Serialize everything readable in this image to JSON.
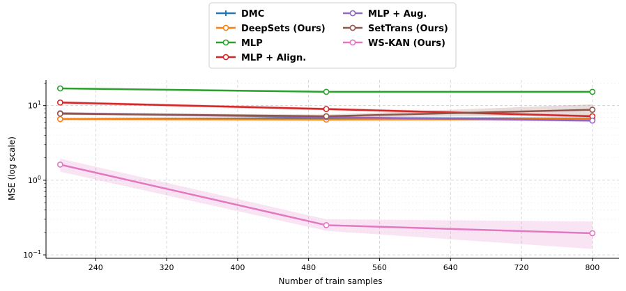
{
  "chart_data": {
    "type": "line",
    "xlabel": "Number of train samples",
    "ylabel": "MSE (log scale)",
    "yscale": "log",
    "xlim": [
      184,
      830
    ],
    "ylim": [
      0.09,
      22
    ],
    "x_ticks": [
      240,
      320,
      400,
      480,
      560,
      640,
      720,
      800
    ],
    "y_ticks": [
      {
        "value": 0.1,
        "base": "10",
        "exp": "−1"
      },
      {
        "value": 1,
        "base": "10",
        "exp": "0"
      },
      {
        "value": 10,
        "base": "10",
        "exp": "1"
      }
    ],
    "grid": true,
    "legend_position": "top-center",
    "x": [
      200,
      500,
      800
    ],
    "series": [
      {
        "name": "DMC",
        "color": "#1f77b4",
        "marker": "plus",
        "values": [
          6.6,
          6.8,
          6.7
        ],
        "band": [
          [
            6.5,
            6.7
          ],
          [
            6.6,
            7.0
          ],
          [
            6.4,
            7.0
          ]
        ]
      },
      {
        "name": "DeepSets (Ours)",
        "color": "#ff7f0e",
        "marker": "circle",
        "values": [
          6.6,
          6.5,
          6.6
        ],
        "band": [
          [
            6.4,
            6.8
          ],
          [
            6.3,
            6.7
          ],
          [
            6.4,
            6.8
          ]
        ]
      },
      {
        "name": "MLP",
        "color": "#2ca02c",
        "marker": "circle",
        "values": [
          17.0,
          15.3,
          15.3
        ],
        "band": [
          [
            16.5,
            17.5
          ],
          [
            14.9,
            15.7
          ],
          [
            14.9,
            15.7
          ]
        ]
      },
      {
        "name": "MLP + Align.",
        "color": "#d62728",
        "marker": "circle",
        "values": [
          11.0,
          9.0,
          7.2
        ],
        "band": [
          [
            10.5,
            11.5
          ],
          [
            8.6,
            9.4
          ],
          [
            6.9,
            7.5
          ]
        ]
      },
      {
        "name": "MLP + Aug.",
        "color": "#9467bd",
        "marker": "circle",
        "values": [
          7.9,
          7.0,
          6.3
        ],
        "band": [
          [
            7.6,
            8.2
          ],
          [
            6.7,
            7.3
          ],
          [
            6.0,
            6.6
          ]
        ]
      },
      {
        "name": "SetTrans (Ours)",
        "color": "#8c564b",
        "marker": "circle",
        "values": [
          7.8,
          7.2,
          8.8
        ],
        "band": [
          [
            7.5,
            8.1
          ],
          [
            6.9,
            7.6
          ],
          [
            7.4,
            10.4
          ]
        ]
      },
      {
        "name": "WS-KAN (Ours)",
        "color": "#e377c2",
        "marker": "circle",
        "values": [
          1.62,
          0.25,
          0.195
        ],
        "band": [
          [
            1.3,
            1.95
          ],
          [
            0.21,
            0.3
          ],
          [
            0.12,
            0.28
          ]
        ]
      }
    ]
  }
}
